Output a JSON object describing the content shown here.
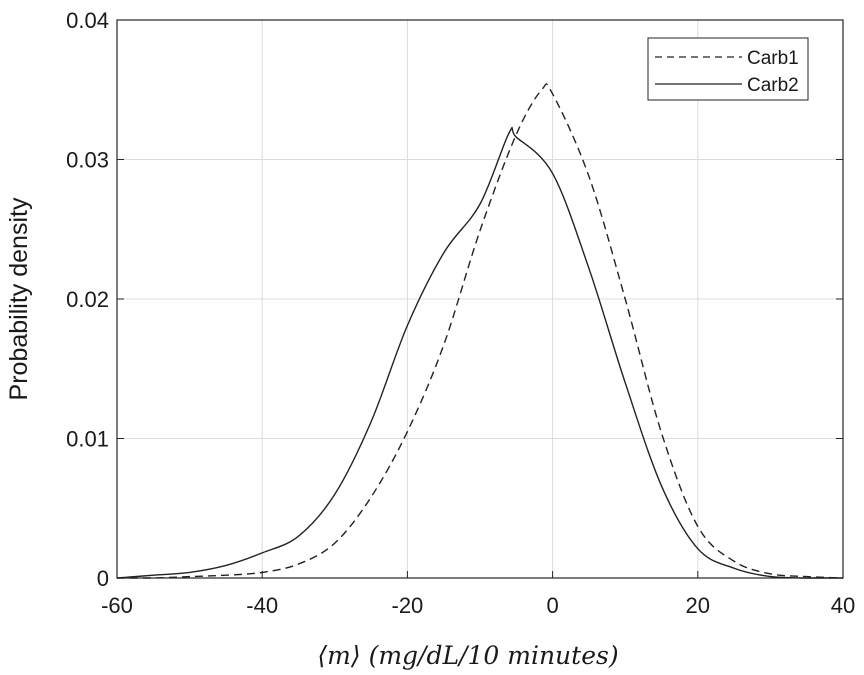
{
  "chart_data": {
    "type": "line",
    "title": "",
    "xlabel": "⟨m⟩    (mg/dL/10 minutes)",
    "ylabel": "Probability density",
    "xlim": [
      -60,
      40
    ],
    "ylim": [
      0,
      0.04
    ],
    "xticks": [
      "-60",
      "-40",
      "-20",
      "0",
      "20",
      "40"
    ],
    "yticks": [
      "0",
      "0.01",
      "0.02",
      "0.03",
      "0.04"
    ],
    "grid": true,
    "legend_position": "top-right",
    "series": [
      {
        "name": "Carb1",
        "style": "dashed",
        "color": "#222222",
        "x": [
          -60,
          -55,
          -50,
          -45,
          -40,
          -35,
          -30,
          -25,
          -20,
          -15,
          -10,
          -5,
          -1.5,
          0,
          5,
          10,
          15,
          20,
          25,
          30,
          35,
          40
        ],
        "y": [
          0,
          0,
          0.0001,
          0.0002,
          0.0004,
          0.001,
          0.0025,
          0.0058,
          0.0105,
          0.0167,
          0.0249,
          0.0318,
          0.035,
          0.0347,
          0.0288,
          0.02,
          0.0104,
          0.0037,
          0.0012,
          0.0003,
          0.0001,
          0
        ]
      },
      {
        "name": "Carb2",
        "style": "solid",
        "color": "#222222",
        "x": [
          -60,
          -55,
          -50,
          -45,
          -40,
          -35,
          -30,
          -25,
          -20,
          -15,
          -10,
          -6,
          -5,
          0,
          5,
          10,
          15,
          20,
          25,
          30,
          35,
          40
        ],
        "y": [
          0,
          0.0002,
          0.0004,
          0.0009,
          0.0018,
          0.003,
          0.006,
          0.0112,
          0.0181,
          0.0233,
          0.0268,
          0.0319,
          0.0316,
          0.029,
          0.0222,
          0.014,
          0.0066,
          0.0021,
          0.0007,
          0.0001,
          0,
          0
        ]
      }
    ]
  }
}
